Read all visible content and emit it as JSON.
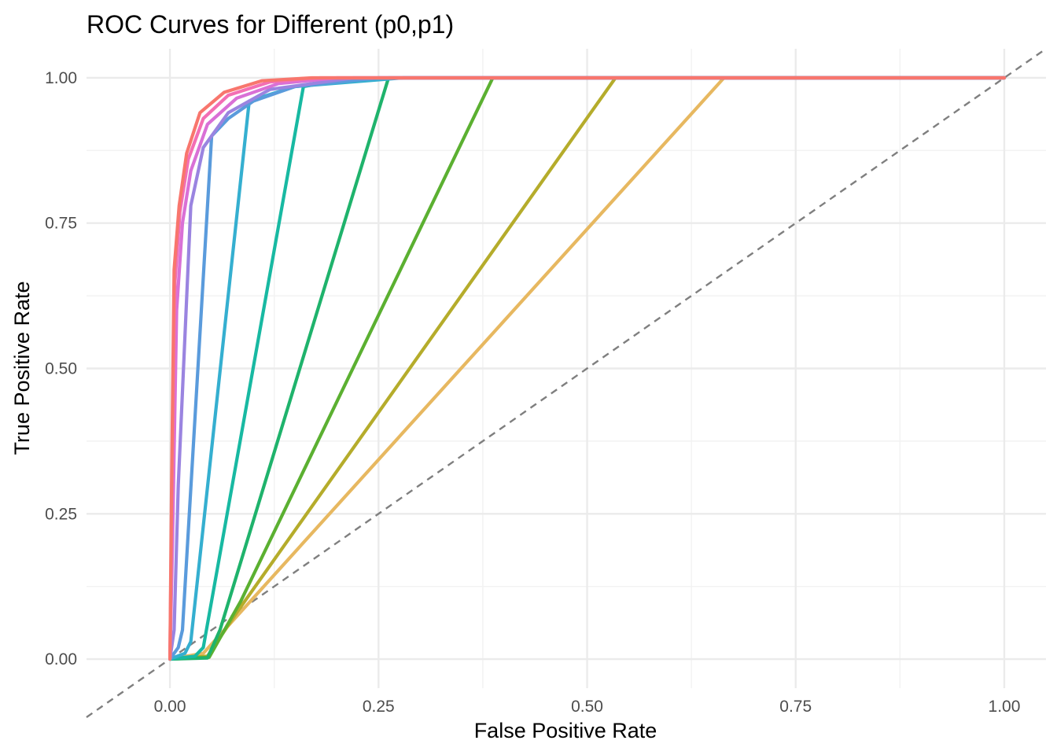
{
  "chart_data": {
    "type": "line",
    "title": "ROC Curves for Different (p0,p1)",
    "xlabel": "False Positive Rate",
    "ylabel": "True Positive Rate",
    "xlim": [
      -0.1,
      1.05
    ],
    "ylim": [
      -0.05,
      1.05
    ],
    "x_ticks": [
      0,
      0.25,
      0.5,
      0.75,
      1
    ],
    "x_tick_labels": [
      "0.00",
      "0.25",
      "0.50",
      "0.75",
      "1.00"
    ],
    "y_ticks": [
      0,
      0.25,
      0.5,
      0.75,
      1
    ],
    "y_tick_labels": [
      "0.00",
      "0.25",
      "0.50",
      "0.75",
      "1.00"
    ],
    "grid": true,
    "legend": "none",
    "reference_line": {
      "x": [
        -0.1,
        1.05
      ],
      "y": [
        -0.1,
        1.05
      ],
      "color": "#7f7f7f",
      "style": "dashed"
    },
    "series": [
      {
        "color": "#E7B860",
        "x": [
          0,
          0.04,
          0.664,
          1
        ],
        "y": [
          0,
          0.01,
          1,
          1
        ]
      },
      {
        "color": "#B5AC2B",
        "x": [
          0,
          0.045,
          0.08,
          0.534,
          1
        ],
        "y": [
          0,
          0.005,
          0.08,
          1,
          1
        ]
      },
      {
        "color": "#5BB031",
        "x": [
          0,
          0.047,
          0.085,
          0.387,
          1
        ],
        "y": [
          0,
          0.003,
          0.1,
          1,
          1
        ]
      },
      {
        "color": "#1FB36C",
        "x": [
          0,
          0.045,
          0.06,
          0.262,
          1
        ],
        "y": [
          0,
          0.002,
          0.05,
          1,
          1
        ]
      },
      {
        "color": "#18B9A2",
        "x": [
          0,
          0.03,
          0.04,
          0.16,
          0.2,
          0.28,
          1
        ],
        "y": [
          0,
          0.005,
          0.02,
          0.985,
          0.995,
          1,
          1
        ]
      },
      {
        "color": "#35AFD0",
        "x": [
          0,
          0.018,
          0.025,
          0.095,
          0.15,
          0.28,
          1
        ],
        "y": [
          0,
          0.01,
          0.03,
          0.96,
          0.985,
          1,
          1
        ]
      },
      {
        "color": "#5A9BDC",
        "x": [
          0,
          0.01,
          0.015,
          0.05,
          0.07,
          0.1,
          0.15,
          0.25,
          1
        ],
        "y": [
          0,
          0.02,
          0.05,
          0.9,
          0.93,
          0.96,
          0.985,
          1,
          1
        ]
      },
      {
        "color": "#9A84E0",
        "x": [
          0,
          0.005,
          0.01,
          0.025,
          0.04,
          0.07,
          0.12,
          0.22,
          1
        ],
        "y": [
          0,
          0.05,
          0.3,
          0.78,
          0.88,
          0.94,
          0.98,
          1,
          1
        ]
      },
      {
        "color": "#D970D6",
        "x": [
          0,
          0.003,
          0.008,
          0.015,
          0.025,
          0.045,
          0.08,
          0.13,
          0.2,
          1
        ],
        "y": [
          0,
          0.2,
          0.6,
          0.75,
          0.84,
          0.92,
          0.965,
          0.99,
          1,
          1
        ]
      },
      {
        "color": "#F36FB4",
        "x": [
          0,
          0.002,
          0.006,
          0.012,
          0.022,
          0.04,
          0.07,
          0.12,
          0.18,
          1
        ],
        "y": [
          0,
          0.25,
          0.65,
          0.77,
          0.86,
          0.93,
          0.97,
          0.993,
          1,
          1
        ]
      },
      {
        "color": "#F8766D",
        "x": [
          0,
          0.002,
          0.005,
          0.011,
          0.02,
          0.036,
          0.065,
          0.11,
          0.17,
          1
        ],
        "y": [
          0,
          0.3,
          0.67,
          0.78,
          0.87,
          0.94,
          0.975,
          0.995,
          1,
          1
        ]
      }
    ]
  }
}
